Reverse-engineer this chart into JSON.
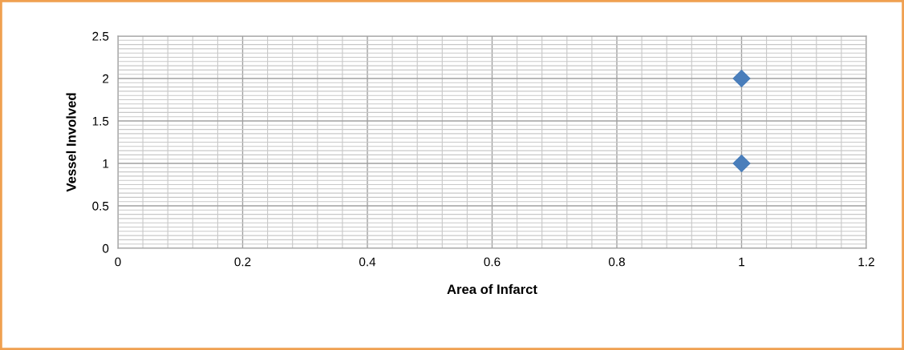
{
  "chart_data": {
    "type": "scatter",
    "xlabel": "Area of Infarct",
    "ylabel": "Vessel Involved",
    "x": [
      1,
      1
    ],
    "series": [
      {
        "color": "#4a7ebb",
        "values": [
          2,
          1
        ]
      }
    ],
    "marker": "diamond",
    "xlim": [
      0,
      1.2
    ],
    "xticks": [
      0,
      0.2,
      0.4,
      0.6,
      0.8,
      1,
      1.2
    ],
    "ylim": [
      0,
      2.5
    ],
    "yticks": [
      0,
      0.5,
      1,
      1.5,
      2,
      2.5
    ],
    "grid": true
  }
}
